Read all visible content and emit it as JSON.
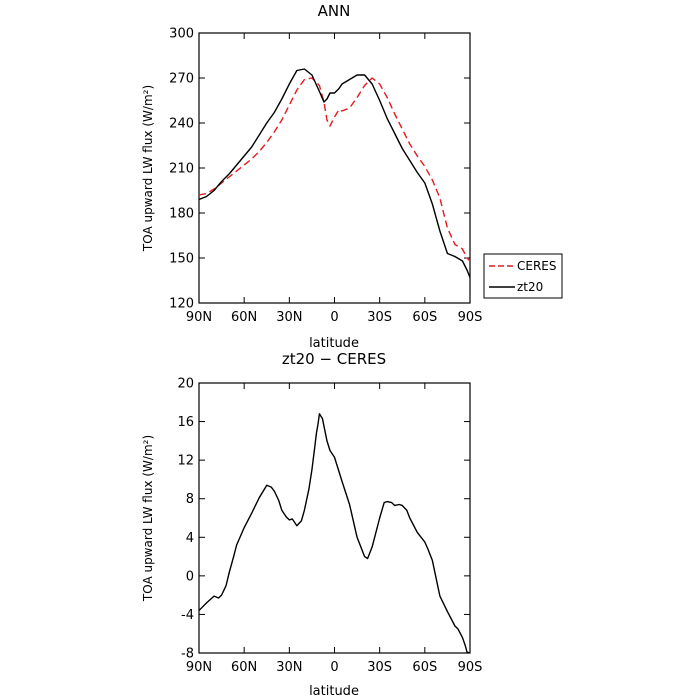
{
  "chart_data": [
    {
      "type": "line",
      "title": "ANN",
      "xlabel": "latitude",
      "ylabel": "TOA upward LW flux (W/m²)",
      "xlim": [
        90,
        -90
      ],
      "ylim": [
        120,
        300
      ],
      "x_ticks": [
        {
          "value": 90,
          "label": "90N"
        },
        {
          "value": 60,
          "label": "60N"
        },
        {
          "value": 30,
          "label": "30N"
        },
        {
          "value": 0,
          "label": "0"
        },
        {
          "value": -30,
          "label": "30S"
        },
        {
          "value": -60,
          "label": "60S"
        },
        {
          "value": -90,
          "label": "90S"
        }
      ],
      "y_ticks": [
        "120",
        "150",
        "180",
        "210",
        "240",
        "270",
        "300"
      ],
      "legend": {
        "placement": "right, outside plot"
      },
      "series": [
        {
          "name": "CERES",
          "color": "#e41a1c",
          "style": "dashed",
          "x": [
            90,
            85,
            80,
            75,
            70,
            65,
            60,
            55,
            50,
            45,
            40,
            35,
            30,
            25,
            20,
            15,
            10,
            7,
            5,
            3,
            0,
            -3,
            -5,
            -10,
            -15,
            -20,
            -25,
            -30,
            -35,
            -40,
            -45,
            -50,
            -55,
            -60,
            -65,
            -70,
            -75,
            -80,
            -85,
            -88,
            -90
          ],
          "y": [
            192,
            193,
            196,
            200,
            204,
            208,
            212,
            216,
            221,
            227,
            234,
            242,
            252,
            262,
            269,
            270,
            265,
            254,
            242,
            238,
            244,
            249,
            248,
            250,
            257,
            265,
            270,
            266,
            257,
            246,
            236,
            226,
            218,
            211,
            202,
            190,
            170,
            159,
            156,
            150,
            148
          ]
        },
        {
          "name": "zt20",
          "color": "#000000",
          "style": "solid",
          "x": [
            90,
            85,
            80,
            75,
            70,
            65,
            60,
            55,
            50,
            45,
            40,
            35,
            30,
            25,
            20,
            15,
            10,
            7,
            5,
            3,
            0,
            -3,
            -5,
            -10,
            -15,
            -20,
            -25,
            -30,
            -35,
            -40,
            -45,
            -50,
            -55,
            -60,
            -65,
            -70,
            -75,
            -80,
            -85,
            -88,
            -90
          ],
          "y": [
            189,
            191,
            195,
            201,
            206,
            212,
            218,
            224,
            232,
            240,
            247,
            256,
            266,
            275,
            276,
            272,
            261,
            254,
            256,
            260,
            260,
            263,
            266,
            269,
            272,
            272,
            266,
            255,
            243,
            233,
            223,
            215,
            207,
            200,
            186,
            168,
            153,
            151,
            148,
            142,
            137
          ]
        }
      ]
    },
    {
      "type": "line",
      "title": "zt20 − CERES",
      "xlabel": "latitude",
      "ylabel": "TOA upward LW flux (W/m²)",
      "xlim": [
        90,
        -90
      ],
      "ylim": [
        -8,
        20
      ],
      "x_ticks": [
        {
          "value": 90,
          "label": "90N"
        },
        {
          "value": 60,
          "label": "60N"
        },
        {
          "value": 30,
          "label": "30N"
        },
        {
          "value": 0,
          "label": "0"
        },
        {
          "value": -30,
          "label": "30S"
        },
        {
          "value": -60,
          "label": "60S"
        },
        {
          "value": -90,
          "label": "90S"
        }
      ],
      "y_ticks": [
        "-8",
        "-4",
        "0",
        "4",
        "8",
        "12",
        "16",
        "20"
      ],
      "series": [
        {
          "color": "#000000",
          "style": "solid",
          "x": [
            90,
            85,
            80,
            77,
            75,
            72,
            70,
            67,
            65,
            60,
            55,
            50,
            45,
            42,
            40,
            37,
            35,
            32,
            30,
            28,
            25,
            22,
            20,
            17,
            15,
            13,
            12,
            11,
            10,
            8,
            5,
            3,
            0,
            -5,
            -10,
            -15,
            -20,
            -22,
            -25,
            -30,
            -33,
            -35,
            -38,
            -40,
            -43,
            -45,
            -48,
            -50,
            -55,
            -60,
            -62,
            -65,
            -70,
            -75,
            -80,
            -82,
            -85,
            -87,
            -88,
            -90
          ],
          "y": [
            -3.6,
            -2.8,
            -2.1,
            -2.3,
            -2.0,
            -1.0,
            0.3,
            2.0,
            3.2,
            5.0,
            6.5,
            8.1,
            9.4,
            9.2,
            8.8,
            7.8,
            6.8,
            6.1,
            5.8,
            5.9,
            5.2,
            5.7,
            6.8,
            9.0,
            11.0,
            13.5,
            14.8,
            15.7,
            16.8,
            16.3,
            14.0,
            13.0,
            12.3,
            9.8,
            7.4,
            4.0,
            2.0,
            1.8,
            3.0,
            6.0,
            7.6,
            7.7,
            7.6,
            7.3,
            7.4,
            7.3,
            6.8,
            6.0,
            4.5,
            3.5,
            2.8,
            1.6,
            -2.1,
            -3.7,
            -5.2,
            -5.5,
            -6.4,
            -7.3,
            -7.9,
            -8.0
          ]
        }
      ]
    }
  ]
}
